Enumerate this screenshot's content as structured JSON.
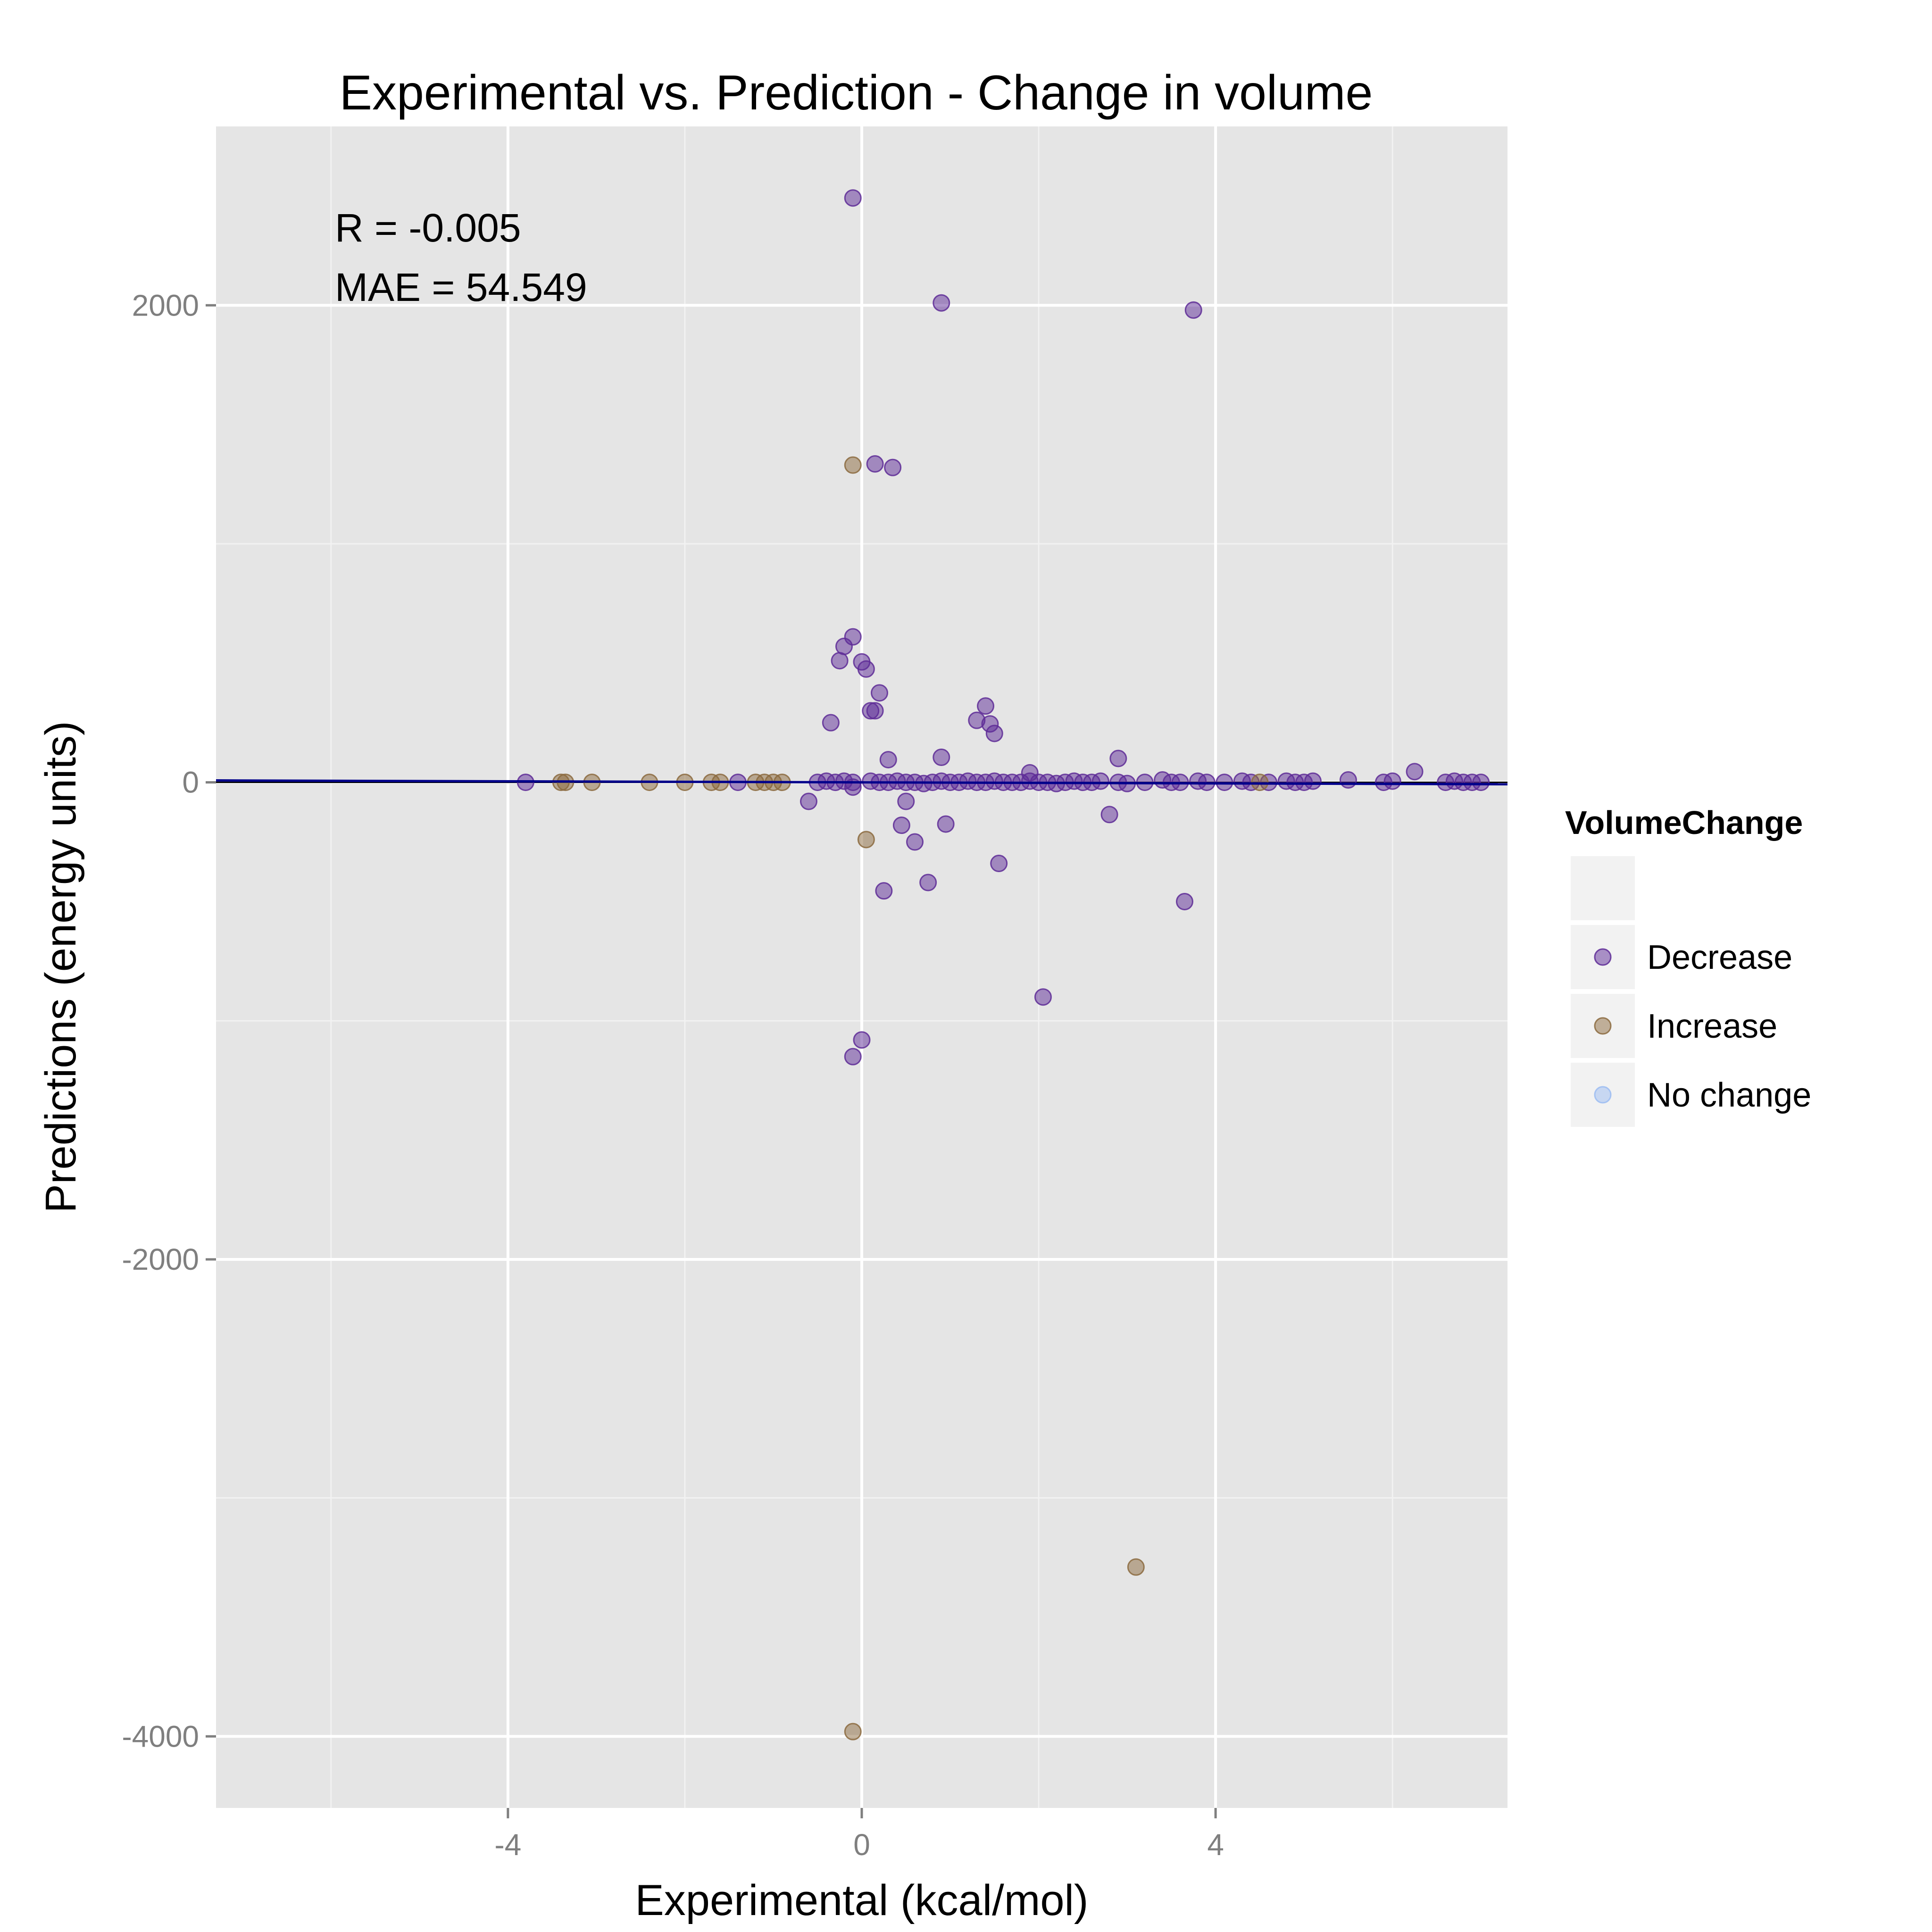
{
  "chart_data": {
    "type": "scatter",
    "title": "Experimental vs. Prediction - Change in volume",
    "xlabel": "Experimental (kcal/mol)",
    "ylabel": "Predictions (energy units)",
    "xlim": [
      -7.3,
      7.3
    ],
    "ylim": [
      -4300,
      2750
    ],
    "x_ticks": [
      -4,
      0,
      4
    ],
    "x_tick_labels": [
      "-4",
      "0",
      "4"
    ],
    "y_ticks": [
      -4000,
      -2000,
      0,
      2000
    ],
    "y_tick_labels": [
      "-4000",
      "-2000",
      "0",
      "2000"
    ],
    "grid": true,
    "legend_position": "right",
    "legend_title": "VolumeChange",
    "annotations": [
      "R = -0.005",
      "MAE = 54.549"
    ],
    "fit_line": {
      "x": [
        -7.3,
        7.3
      ],
      "y": [
        8,
        -8
      ],
      "color": "#00008b"
    },
    "series": [
      {
        "name": "",
        "color": "#f2f2f2",
        "x": [],
        "y": []
      },
      {
        "name": "Decrease",
        "color": "#5e2b97",
        "x": [
          -0.1,
          0.9,
          3.75,
          0.15,
          0.35,
          -0.1,
          -0.2,
          -0.25,
          0,
          0.05,
          0.2,
          0.1,
          0.15,
          -0.35,
          1.4,
          1.3,
          1.45,
          1.5,
          0.3,
          0.9,
          2.9,
          1.9,
          6.25,
          -3.8,
          -1.4,
          -0.6,
          0.5,
          -0.1,
          0.45,
          0.95,
          0.6,
          0.75,
          0.25,
          1.55,
          3.65,
          2.8,
          2.05,
          0,
          -0.1,
          -0.5,
          -0.4,
          -0.3,
          -0.2,
          -0.1,
          0.1,
          0.2,
          0.3,
          0.4,
          0.5,
          0.6,
          0.7,
          0.8,
          0.9,
          1.0,
          1.1,
          1.2,
          1.3,
          1.4,
          1.5,
          1.6,
          1.7,
          1.8,
          1.9,
          2.0,
          2.1,
          2.2,
          2.3,
          2.4,
          2.5,
          2.6,
          2.7,
          2.9,
          3.0,
          3.2,
          3.4,
          3.5,
          3.6,
          3.8,
          3.9,
          4.1,
          4.3,
          4.4,
          4.6,
          4.8,
          4.9,
          5.0,
          5.1,
          5.5,
          5.9,
          6.0,
          6.6,
          6.7,
          6.8,
          6.9,
          7.0
        ],
        "y": [
          2450,
          2010,
          1980,
          1335,
          1320,
          610,
          570,
          510,
          505,
          475,
          375,
          300,
          300,
          250,
          320,
          260,
          245,
          205,
          95,
          105,
          100,
          40,
          45,
          0,
          0,
          -80,
          -80,
          -20,
          -180,
          -175,
          -250,
          -420,
          -455,
          -340,
          -500,
          -135,
          -900,
          -1080,
          -1150,
          0,
          5,
          0,
          5,
          0,
          5,
          0,
          0,
          5,
          0,
          0,
          -5,
          0,
          5,
          0,
          0,
          5,
          0,
          0,
          5,
          0,
          0,
          0,
          5,
          0,
          0,
          -5,
          0,
          5,
          0,
          0,
          5,
          0,
          -5,
          0,
          10,
          0,
          0,
          5,
          0,
          0,
          5,
          0,
          0,
          5,
          0,
          0,
          5,
          10,
          0,
          5,
          0,
          5,
          0,
          0,
          0
        ]
      },
      {
        "name": "Increase",
        "color": "#8b6a3e",
        "x": [
          -0.1,
          0.05,
          3.1,
          -0.1,
          -3.4,
          -3.35,
          -3.05,
          -2.4,
          -2.0,
          -1.7,
          -1.6,
          -1.2,
          -1.1,
          -1.0,
          -0.9,
          4.5
        ],
        "y": [
          1330,
          -240,
          -3290,
          -3980,
          0,
          0,
          0,
          0,
          0,
          0,
          0,
          0,
          0,
          0,
          0,
          0
        ]
      },
      {
        "name": "No change",
        "color": "#9bbcf2",
        "x": [],
        "y": []
      }
    ]
  }
}
